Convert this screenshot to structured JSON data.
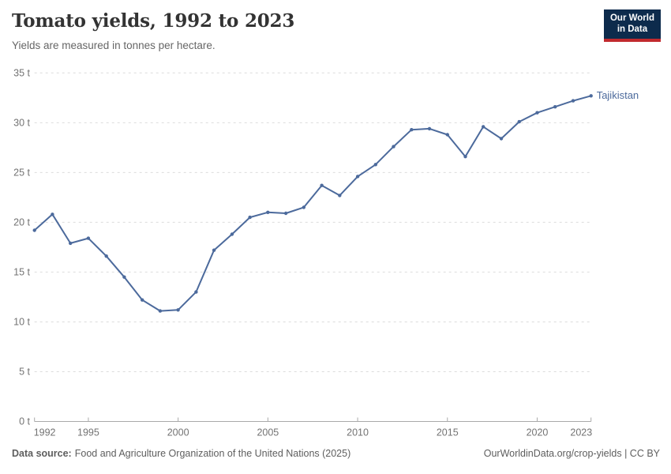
{
  "header": {
    "title": "Tomato yields, 1992 to 2023",
    "subtitle": "Yields are measured in tonnes per hectare."
  },
  "logo": {
    "line1": "Our World",
    "line2": "in Data",
    "bg_color": "#0d2b4c",
    "accent_color": "#c12a2e"
  },
  "chart_data": {
    "type": "line",
    "title": "Tomato yields, 1992 to 2023",
    "subtitle": "Yields are measured in tonnes per hectare.",
    "unit": "t",
    "x": [
      1992,
      1993,
      1994,
      1995,
      1996,
      1997,
      1998,
      1999,
      2000,
      2001,
      2002,
      2003,
      2004,
      2005,
      2006,
      2007,
      2008,
      2009,
      2010,
      2011,
      2012,
      2013,
      2014,
      2015,
      2016,
      2017,
      2018,
      2019,
      2020,
      2021,
      2022,
      2023
    ],
    "series": [
      {
        "name": "Tajikistan",
        "color": "#4C6A9C",
        "values": [
          19.2,
          20.8,
          17.9,
          18.4,
          16.6,
          14.5,
          12.2,
          11.1,
          11.2,
          13.0,
          17.2,
          18.8,
          20.5,
          21.0,
          20.9,
          21.5,
          23.7,
          22.7,
          24.6,
          25.8,
          27.6,
          29.3,
          29.4,
          28.8,
          26.6,
          29.6,
          28.4,
          30.1,
          31.0,
          31.6,
          32.2,
          32.7
        ]
      }
    ],
    "xlim": [
      1992,
      2023
    ],
    "ylim": [
      0,
      35
    ],
    "y_ticks": [
      0,
      5,
      10,
      15,
      20,
      25,
      30,
      35
    ],
    "x_tick_labels": [
      1992,
      1995,
      2000,
      2005,
      2010,
      2015,
      2020,
      2023
    ],
    "y_tick_suffix": " t",
    "grid": "horizontal-dashed",
    "legend_position": "end-of-line"
  },
  "footer": {
    "source_label": "Data source:",
    "source_text": "Food and Agriculture Organization of the United Nations (2025)",
    "link_text": "OurWorldinData.org/crop-yields",
    "separator": " | ",
    "license_text": "CC BY"
  },
  "colors": {
    "background": "#ffffff",
    "title": "#333333",
    "subtitle": "#666666",
    "grid": "#dcdcdc",
    "axis": "#a9a9a9",
    "tick_label": "#737373",
    "footer_text": "#5e5e5e",
    "line": "#4C6A9C"
  }
}
